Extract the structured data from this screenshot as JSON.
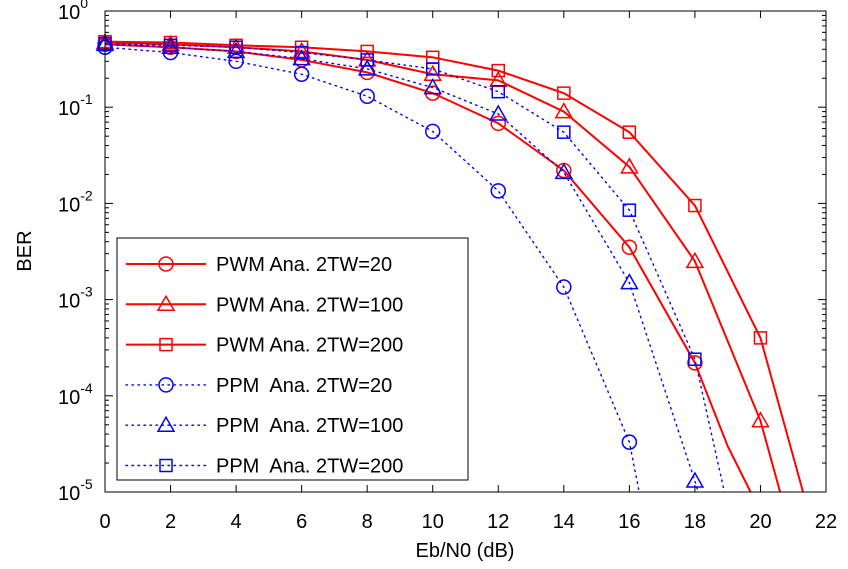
{
  "chart_data": {
    "type": "line",
    "title": "",
    "xlabel": "Eb/N0 (dB)",
    "ylabel": "BER",
    "xlim": [
      0,
      22
    ],
    "ylim": [
      1e-05,
      1
    ],
    "yscale": "log",
    "grid": false,
    "legend_position": "bottom-left",
    "xticks": [
      "0",
      "2",
      "4",
      "6",
      "8",
      "10",
      "12",
      "14",
      "16",
      "18",
      "20",
      "22"
    ],
    "yticks": [
      {
        "base": "10",
        "exp": "0"
      },
      {
        "base": "10",
        "exp": "-1"
      },
      {
        "base": "10",
        "exp": "-2"
      },
      {
        "base": "10",
        "exp": "-3"
      },
      {
        "base": "10",
        "exp": "-4"
      },
      {
        "base": "10",
        "exp": "-5"
      }
    ],
    "series": [
      {
        "name": "PWM Ana. 2TW=20",
        "color": "#ff0000",
        "line": "solid",
        "marker": "circle",
        "x": [
          0,
          2,
          4,
          6,
          8,
          10,
          12,
          14,
          16,
          18
        ],
        "y": [
          0.45,
          0.42,
          0.38,
          0.31,
          0.23,
          0.14,
          0.068,
          0.022,
          0.0035,
          0.00022
        ],
        "curve_x": [
          0,
          2,
          4,
          6,
          8,
          10,
          12,
          14,
          16,
          18,
          19,
          19.7
        ],
        "curve_y": [
          0.45,
          0.42,
          0.38,
          0.31,
          0.23,
          0.14,
          0.068,
          0.022,
          0.0035,
          0.00022,
          3e-05,
          1e-05
        ]
      },
      {
        "name": "PWM Ana. 2TW=100",
        "color": "#ff0000",
        "line": "solid",
        "marker": "triangle",
        "x": [
          0,
          2,
          4,
          6,
          8,
          10,
          12,
          14,
          16,
          18,
          20
        ],
        "y": [
          0.47,
          0.45,
          0.42,
          0.38,
          0.31,
          0.22,
          0.19,
          0.09,
          0.024,
          0.0025,
          5.5e-05
        ],
        "curve_x": [
          0,
          2,
          4,
          6,
          8,
          10,
          12,
          14,
          16,
          18,
          20,
          20.6
        ],
        "curve_y": [
          0.47,
          0.45,
          0.42,
          0.38,
          0.31,
          0.22,
          0.19,
          0.09,
          0.024,
          0.0025,
          5.5e-05,
          1e-05
        ]
      },
      {
        "name": "PWM Ana. 2TW=200",
        "color": "#ff0000",
        "line": "solid",
        "marker": "square",
        "x": [
          0,
          2,
          4,
          6,
          8,
          10,
          12,
          14,
          16,
          18,
          20
        ],
        "y": [
          0.48,
          0.47,
          0.44,
          0.42,
          0.38,
          0.33,
          0.24,
          0.14,
          0.055,
          0.0095,
          0.0004
        ],
        "curve_x": [
          0,
          2,
          4,
          6,
          8,
          10,
          12,
          14,
          16,
          18,
          20,
          21.3
        ],
        "curve_y": [
          0.48,
          0.47,
          0.44,
          0.42,
          0.38,
          0.33,
          0.24,
          0.14,
          0.055,
          0.0095,
          0.0004,
          1e-05
        ]
      },
      {
        "name": "PPM  Ana. 2TW=20",
        "color": "#0000ff",
        "line": "dotted",
        "marker": "circle",
        "x": [
          0,
          2,
          4,
          6,
          8,
          10,
          12,
          14,
          16
        ],
        "y": [
          0.42,
          0.37,
          0.3,
          0.22,
          0.13,
          0.056,
          0.0135,
          0.00135,
          3.3e-05
        ],
        "curve_x": [
          0,
          2,
          4,
          6,
          8,
          10,
          12,
          14,
          16,
          16.3
        ],
        "curve_y": [
          0.42,
          0.37,
          0.3,
          0.22,
          0.13,
          0.056,
          0.0135,
          0.00135,
          3.3e-05,
          1e-05
        ]
      },
      {
        "name": "PPM  Ana. 2TW=100",
        "color": "#0000ff",
        "line": "dotted",
        "marker": "triangle",
        "x": [
          0,
          2,
          4,
          6,
          8,
          10,
          12,
          14,
          16,
          18
        ],
        "y": [
          0.45,
          0.42,
          0.38,
          0.32,
          0.25,
          0.16,
          0.085,
          0.021,
          0.0015,
          1.3e-05
        ],
        "curve_x": [
          0,
          2,
          4,
          6,
          8,
          10,
          12,
          14,
          16,
          18,
          18.1
        ],
        "curve_y": [
          0.45,
          0.42,
          0.38,
          0.32,
          0.25,
          0.16,
          0.085,
          0.021,
          0.0015,
          1.3e-05,
          1e-05
        ]
      },
      {
        "name": "PPM  Ana. 2TW=200",
        "color": "#0000ff",
        "line": "dotted",
        "marker": "square",
        "x": [
          0,
          2,
          4,
          6,
          8,
          10,
          12,
          14,
          16,
          18
        ],
        "y": [
          0.46,
          0.44,
          0.42,
          0.37,
          0.31,
          0.25,
          0.145,
          0.055,
          0.0085,
          0.00024
        ],
        "curve_x": [
          0,
          2,
          4,
          6,
          8,
          10,
          12,
          14,
          16,
          18,
          18.9
        ],
        "curve_y": [
          0.46,
          0.44,
          0.42,
          0.37,
          0.31,
          0.25,
          0.145,
          0.055,
          0.0085,
          0.00024,
          1e-05
        ]
      }
    ]
  }
}
